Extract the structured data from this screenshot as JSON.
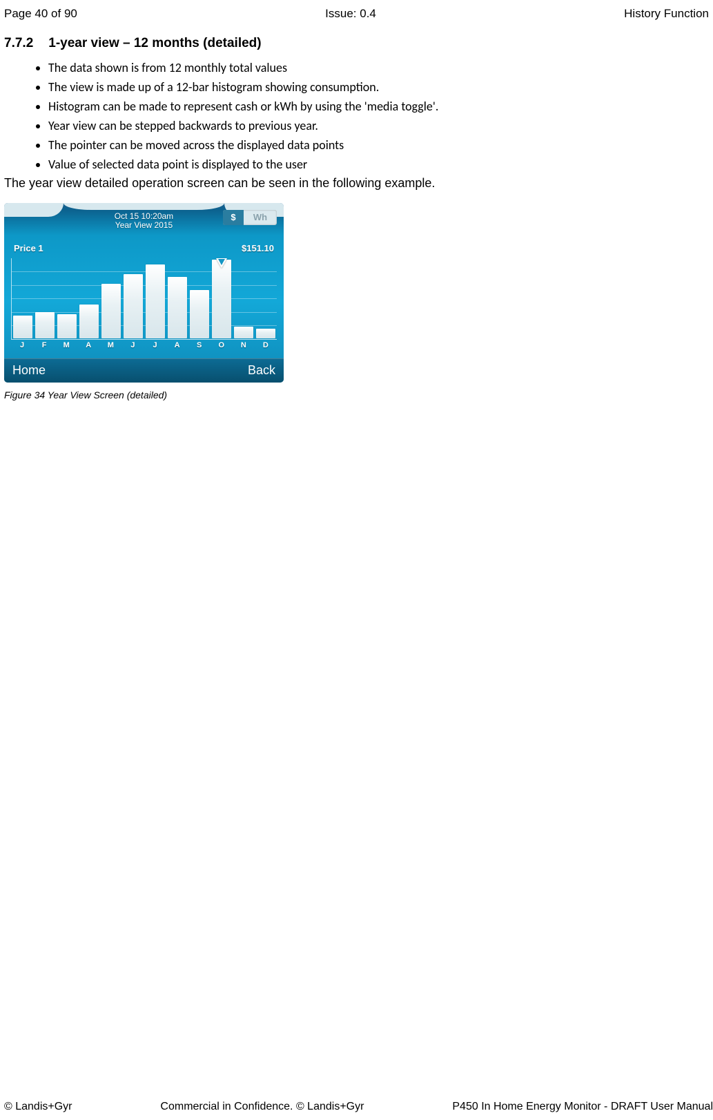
{
  "header": {
    "left": "Page 40 of 90",
    "center": "Issue: 0.4",
    "right": "History Function"
  },
  "section": {
    "number": "7.7.2",
    "title": "1-year view – 12 months (detailed)"
  },
  "bullets": [
    "The data shown is from 12 monthly total values",
    " The view is made up of a 12-bar histogram showing consumption.",
    "Histogram can be made to represent cash or kWh by using the 'media toggle'.",
    "Year view can be stepped backwards to previous year.",
    "The pointer can be moved across the displayed data points",
    "Value of selected data point is displayed to the user"
  ],
  "after_list": "The year view detailed operation screen can be seen in the following example.",
  "device": {
    "timestamp_line1": "Oct 15  10:20am",
    "timestamp_line2": "Year View   2015",
    "toggle": {
      "active": "$",
      "inactive": "Wh"
    },
    "label_left": "Price 1",
    "label_right": "$151.10",
    "btn_home": "Home",
    "btn_back": "Back",
    "months": [
      "J",
      "F",
      "M",
      "A",
      "M",
      "J",
      "J",
      "A",
      "S",
      "O",
      "N",
      "D"
    ],
    "bar_heights_pct": [
      28,
      32,
      30,
      42,
      68,
      80,
      92,
      76,
      60,
      98,
      14,
      12
    ],
    "pointer_index": 9,
    "grid_rows": 5,
    "colors": {
      "bg_top": "#0d98c7",
      "bg_bottom": "#0f8dbb",
      "bar_fill": "#ffffff",
      "text": "#ffffff",
      "footer_bg": "#0a5d82"
    }
  },
  "figure_caption": "Figure 34 Year View Screen (detailed)",
  "footer": {
    "left": "© Landis+Gyr",
    "center": "Commercial in Confidence. © Landis+Gyr",
    "right": "P450 In Home Energy Monitor - DRAFT User Manual"
  }
}
